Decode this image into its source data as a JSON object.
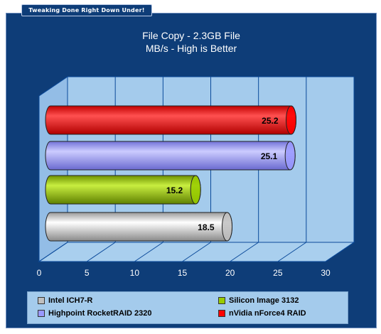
{
  "banner": "Tweaking Done Right Down Under!",
  "chart_data": {
    "type": "bar",
    "orientation": "horizontal",
    "title": "File Copy - 2.3GB File",
    "subtitle": "MB/s - High is Better",
    "categories": [
      "Intel ICH7-R",
      "Silicon Image 3132",
      "Highpoint RocketRAID 2320",
      "nVidia nForce4 RAID"
    ],
    "values": [
      18.5,
      15.2,
      25.1,
      25.2
    ],
    "value_labels": [
      "18.5",
      "15.2",
      "25.1",
      "25.2"
    ],
    "xlim": [
      0,
      30
    ],
    "x_ticks": [
      "0",
      "5",
      "10",
      "15",
      "20",
      "25",
      "30"
    ],
    "grid": true,
    "legend_position": "bottom",
    "colors": [
      "#c0c0c0",
      "#99cc00",
      "#9999ff",
      "#ff0000"
    ]
  },
  "legend": [
    {
      "label": "Intel ICH7-R",
      "color": "#c0c0c0"
    },
    {
      "label": "Silicon Image 3132",
      "color": "#99cc00"
    },
    {
      "label": "Highpoint RocketRAID 2320",
      "color": "#9999ff"
    },
    {
      "label": "nVidia nForce4 RAID",
      "color": "#ff0000"
    }
  ]
}
